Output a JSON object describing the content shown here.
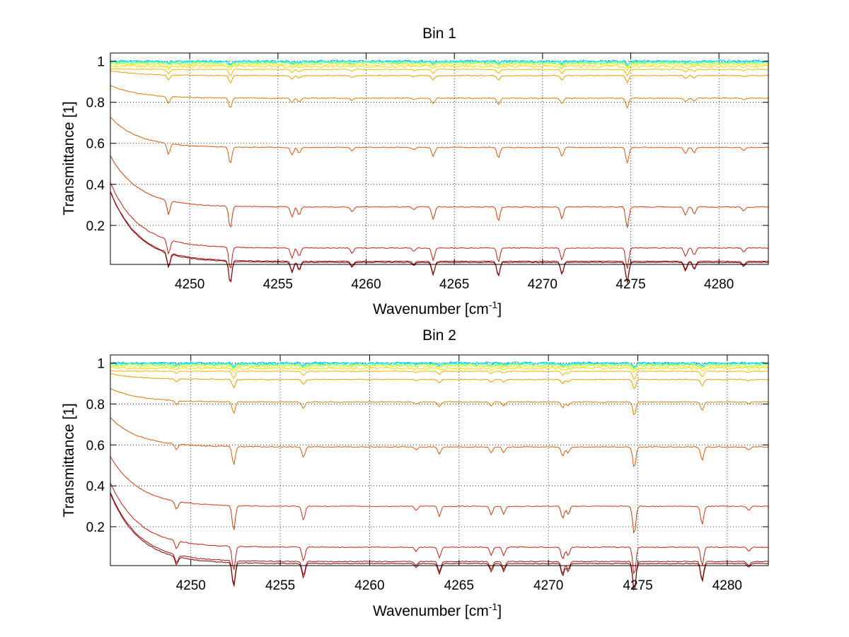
{
  "chart_data": [
    {
      "type": "line",
      "title": "Bin 1",
      "xlabel": "Wavenumber [cm",
      "xlabel_sup": "-1",
      "xlabel_end": "]",
      "ylabel": "Transmittance [1]",
      "xlim": [
        4245.5,
        4282.8
      ],
      "ylim": [
        0.01,
        1.04
      ],
      "xticks": [
        4250,
        4255,
        4260,
        4265,
        4270,
        4275,
        4280
      ],
      "yticks": [
        0.2,
        0.4,
        0.6,
        0.8,
        1
      ],
      "ytick_labels": [
        "0.2",
        "0.4",
        "0.6",
        "0.8",
        "1"
      ],
      "grid": "dotted",
      "baselines": [
        1.0,
        0.998,
        0.995,
        0.99,
        0.985,
        0.975,
        0.96,
        0.93,
        0.82,
        0.58,
        0.29,
        0.09,
        0.025,
        0.02
      ],
      "colors": [
        "#00bfff",
        "#00e0ff",
        "#40ffbf",
        "#a0ff60",
        "#e0ff20",
        "#ffd700",
        "#f5b800",
        "#ee9a00",
        "#e07800",
        "#d85a10",
        "#cc3a10",
        "#c02010",
        "#a01010",
        "#800000"
      ],
      "lines": [
        4248.8,
        4252.3,
        4255.8,
        4256.2,
        4259.2,
        4262.7,
        4263.8,
        4267.5,
        4271.1,
        4274.8,
        4278.1,
        4278.6,
        4281.4
      ],
      "line_depths": [
        0.07,
        0.11,
        0.05,
        0.04,
        0.025,
        0.015,
        0.06,
        0.07,
        0.06,
        0.1,
        0.04,
        0.035,
        0.02
      ]
    },
    {
      "type": "line",
      "title": "Bin 2",
      "xlabel": "Wavenumber [cm",
      "xlabel_sup": "-1",
      "xlabel_end": "]",
      "ylabel": "Transmittance [1]",
      "xlim": [
        4245.5,
        4282.3
      ],
      "ylim": [
        0.01,
        1.04
      ],
      "xticks": [
        4250,
        4255,
        4260,
        4265,
        4270,
        4275,
        4280
      ],
      "yticks": [
        0.2,
        0.4,
        0.6,
        0.8,
        1
      ],
      "ytick_labels": [
        "0.2",
        "0.4",
        "0.6",
        "0.8",
        "1"
      ],
      "grid": "dotted",
      "baselines": [
        1.0,
        0.998,
        0.995,
        0.99,
        0.985,
        0.975,
        0.96,
        0.92,
        0.81,
        0.59,
        0.3,
        0.1,
        0.03,
        0.02
      ],
      "colors": [
        "#00bfff",
        "#00e0ff",
        "#40ffbf",
        "#a0ff60",
        "#e0ff20",
        "#ffd700",
        "#f5b800",
        "#ee9a00",
        "#e07800",
        "#d85a10",
        "#cc3a10",
        "#c02010",
        "#a01010",
        "#800000"
      ],
      "lines": [
        4249.2,
        4252.4,
        4256.3,
        4262.6,
        4263.9,
        4266.8,
        4267.5,
        4270.8,
        4271.1,
        4274.8,
        4278.6,
        4281.2
      ],
      "line_depths": [
        0.04,
        0.12,
        0.07,
        0.02,
        0.05,
        0.04,
        0.04,
        0.06,
        0.04,
        0.14,
        0.09,
        0.02
      ]
    }
  ]
}
